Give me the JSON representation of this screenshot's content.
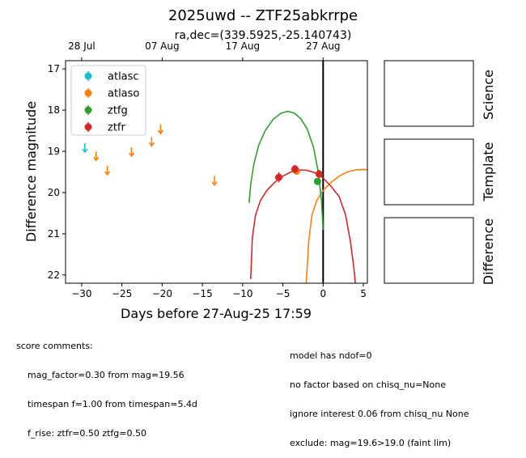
{
  "chart_data": {
    "type": "scatter",
    "title": "2025uwd -- ZTF25abkrrpe",
    "subtitle": "ra,dec=(339.5925,-25.140743)",
    "xlabel": "Days before 27-Aug-25 17:59",
    "ylabel": "Difference magnitude",
    "xlim": [
      -32,
      5.5
    ],
    "ylim": [
      22.2,
      16.8
    ],
    "y_inverted": true,
    "grid": false,
    "legend_position": "top-left",
    "x_ticks": [
      -30,
      -25,
      -20,
      -15,
      -10,
      -5,
      0,
      5
    ],
    "x_tick_labels": [
      "−30",
      "−25",
      "−20",
      "−15",
      "−10",
      "−5",
      "0",
      "5"
    ],
    "y_ticks": [
      17,
      18,
      19,
      20,
      21,
      22
    ],
    "y_tick_labels": [
      "17",
      "18",
      "19",
      "20",
      "21",
      "22"
    ],
    "top_axis_ticks": [
      {
        "x": -30,
        "label": "28 Jul"
      },
      {
        "x": -20,
        "label": "07 Aug"
      },
      {
        "x": -10,
        "label": "17 Aug"
      },
      {
        "x": 0,
        "label": "27 Aug"
      }
    ],
    "vertical_line_x": 0,
    "series": [
      {
        "name": "atlasc",
        "color": "#17becf",
        "upper_limits": [
          {
            "x": -29.6,
            "y": 18.9
          }
        ],
        "detections": []
      },
      {
        "name": "atlaso",
        "color": "#ff7f0e",
        "upper_limits": [
          {
            "x": -28.2,
            "y": 19.1
          },
          {
            "x": -26.8,
            "y": 19.45
          },
          {
            "x": -23.8,
            "y": 19.0
          },
          {
            "x": -21.3,
            "y": 18.75
          },
          {
            "x": -20.2,
            "y": 18.45
          },
          {
            "x": -13.5,
            "y": 19.7
          }
        ],
        "detections": [
          {
            "x": -3.3,
            "y": 19.48,
            "err": 0.08
          }
        ],
        "model_curve": [
          [
            -2.1,
            22.2
          ],
          [
            -1.8,
            21.2
          ],
          [
            -1.4,
            20.55
          ],
          [
            -0.8,
            20.2
          ],
          [
            0.0,
            19.95
          ],
          [
            1.0,
            19.75
          ],
          [
            2.0,
            19.6
          ],
          [
            3.0,
            19.5
          ],
          [
            4.0,
            19.45
          ],
          [
            5.0,
            19.44
          ],
          [
            6.0,
            19.46
          ],
          [
            7.0,
            19.5
          ],
          [
            8.0,
            19.6
          ],
          [
            9.0,
            19.78
          ],
          [
            10.0,
            20.05
          ],
          [
            10.6,
            20.5
          ],
          [
            11.0,
            21.1
          ],
          [
            11.35,
            22.2
          ]
        ]
      },
      {
        "name": "ztfg",
        "color": "#2ca02c",
        "upper_limits": [],
        "detections": [
          {
            "x": -0.7,
            "y": 19.73,
            "err": 0.06
          }
        ],
        "model_curve": [
          [
            -9.2,
            20.25
          ],
          [
            -9.0,
            19.8
          ],
          [
            -8.6,
            19.3
          ],
          [
            -8.0,
            18.85
          ],
          [
            -7.2,
            18.5
          ],
          [
            -6.2,
            18.22
          ],
          [
            -5.2,
            18.07
          ],
          [
            -4.4,
            18.03
          ],
          [
            -3.6,
            18.07
          ],
          [
            -2.8,
            18.2
          ],
          [
            -2.0,
            18.45
          ],
          [
            -1.2,
            18.9
          ],
          [
            -0.6,
            19.5
          ],
          [
            -0.2,
            20.2
          ],
          [
            0.0,
            20.9
          ]
        ]
      },
      {
        "name": "ztfr",
        "color": "#d62728",
        "upper_limits": [],
        "detections": [
          {
            "x": -5.5,
            "y": 19.63,
            "err": 0.12
          },
          {
            "x": -3.5,
            "y": 19.43,
            "err": 0.1
          },
          {
            "x": -0.5,
            "y": 19.55,
            "err": 0.1
          }
        ],
        "model_curve": [
          [
            -9.0,
            22.1
          ],
          [
            -8.8,
            21.1
          ],
          [
            -8.4,
            20.55
          ],
          [
            -7.8,
            20.2
          ],
          [
            -7.0,
            19.95
          ],
          [
            -6.0,
            19.75
          ],
          [
            -5.0,
            19.6
          ],
          [
            -4.0,
            19.5
          ],
          [
            -3.0,
            19.45
          ],
          [
            -2.0,
            19.46
          ],
          [
            -1.0,
            19.52
          ],
          [
            0.0,
            19.65
          ],
          [
            1.0,
            19.85
          ],
          [
            2.0,
            20.1
          ],
          [
            2.8,
            20.55
          ],
          [
            3.4,
            21.2
          ],
          [
            3.8,
            21.8
          ],
          [
            4.0,
            22.2
          ]
        ]
      }
    ]
  },
  "cutout_labels": [
    "Science",
    "Template",
    "Difference"
  ],
  "score_comments": {
    "heading": "score comments:",
    "lines": [
      "mag_factor=0.30 from mag=19.56",
      "timespan f=1.00 from timespan=5.4d",
      "f_rise: ztfr=0.50 ztfg=0.50"
    ]
  },
  "model_comments": [
    "model has ndof=0",
    "no factor based on chisq_nu=None",
    "ignore interest 0.06 from chisq_nu None",
    "exclude: mag=19.6>19.0 (faint lim)"
  ]
}
